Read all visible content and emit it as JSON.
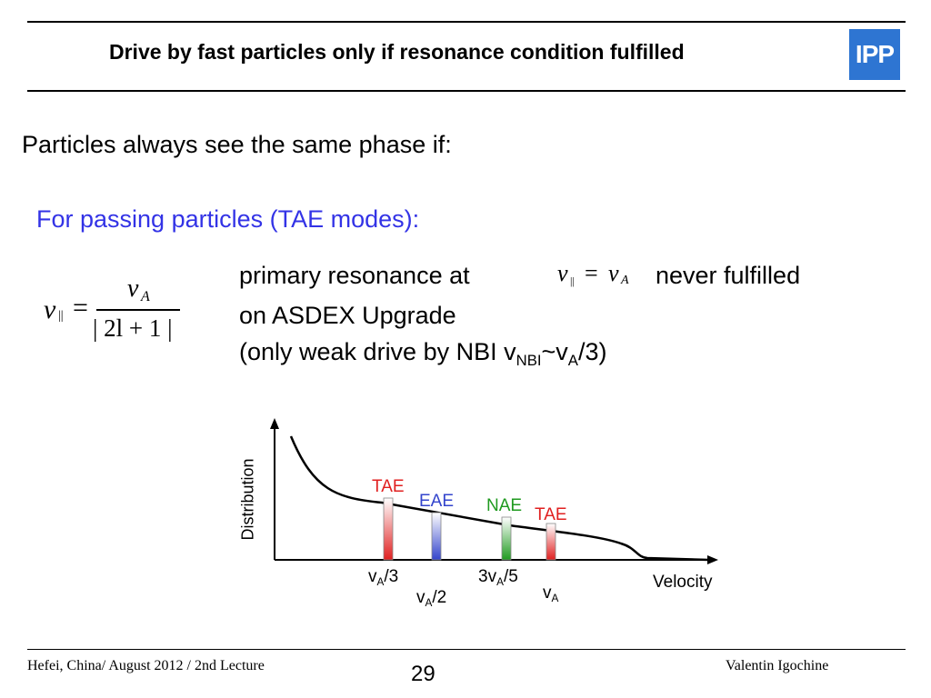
{
  "slide": {
    "title": "Drive by fast particles only if resonance condition fulfilled",
    "logo_text": "IPP",
    "line1": "Particles always see the same phase if:",
    "line2": "For passing particles (TAE modes):",
    "formula": {
      "lhs_v": "v",
      "lhs_sub": "||",
      "equals": "=",
      "num_v": "v",
      "num_sub": "A",
      "den": "| 2l + 1 |"
    },
    "resonance": {
      "prefix": "primary resonance at",
      "eq_v": "v",
      "eq_sub": "||",
      "eq_equals": "=",
      "eq_rhs_v": "v",
      "eq_rhs_sub": "A",
      "suffix": "never fulfilled",
      "line2": "on ASDEX Upgrade",
      "line3_a": "(only weak drive by NBI v",
      "line3_sub1": "NBI",
      "line3_b": "~v",
      "line3_sub2": "A",
      "line3_c": "/3)"
    }
  },
  "chart_data": {
    "type": "line",
    "ylabel": "Distribution",
    "xlabel": "Velocity",
    "bars": [
      {
        "label": "TAE",
        "color": "#e02020",
        "tick_main": "v",
        "tick_sub": "A",
        "tick_rest": "/3"
      },
      {
        "label": "EAE",
        "color": "#3344cc",
        "tick_main": "v",
        "tick_sub": "A",
        "tick_rest": "/2"
      },
      {
        "label": "NAE",
        "color": "#1f9a1f",
        "tick_main": "3v",
        "tick_sub": "A",
        "tick_rest": "/5"
      },
      {
        "label": "TAE",
        "color": "#e02020",
        "tick_main": "v",
        "tick_sub": "A",
        "tick_rest": ""
      }
    ]
  },
  "footer": {
    "left": "Hefei, China/ August 2012 / 2nd Lecture",
    "page": "29",
    "right": "Valentin Igochine"
  }
}
